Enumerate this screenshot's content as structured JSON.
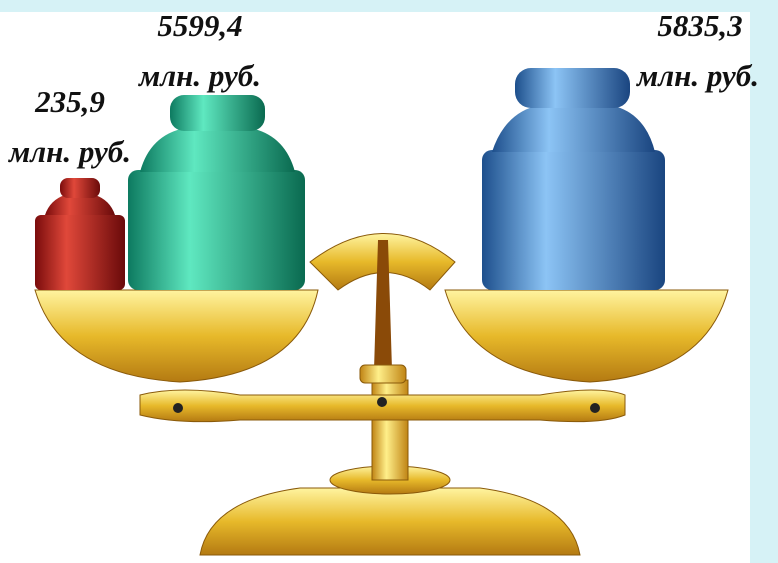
{
  "weights": [
    {
      "value": "235,9",
      "unit": "млн. руб."
    },
    {
      "value": "5599,4",
      "unit": "млн. руб."
    },
    {
      "value": "5835,3",
      "unit": "млн. руб."
    }
  ]
}
